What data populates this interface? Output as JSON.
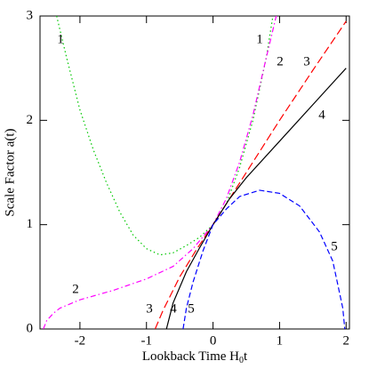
{
  "chart_data": {
    "type": "line",
    "xlabel": "Lookback Time  H",
    "xlabel_sub": "0",
    "xlabel_tail": "t",
    "ylabel": "Scale Factor  a(t)",
    "xlim": [
      -2.6,
      2.05
    ],
    "ylim": [
      0,
      3
    ],
    "xticks": [
      -2,
      -1,
      0,
      1,
      2
    ],
    "yticks": [
      0,
      1,
      2,
      3
    ],
    "series": [
      {
        "name": "1",
        "color": "#00c800",
        "dash": "1.5 3",
        "x": [
          -2.35,
          -2.2,
          -2,
          -1.8,
          -1.6,
          -1.4,
          -1.2,
          -1,
          -0.8,
          -0.6,
          -0.4,
          -0.2,
          0,
          0.2,
          0.4,
          0.6,
          0.8,
          0.9
        ],
        "values": [
          3,
          2.6,
          2.1,
          1.72,
          1.4,
          1.12,
          0.9,
          0.77,
          0.71,
          0.73,
          0.8,
          0.88,
          1,
          1.2,
          1.55,
          2,
          2.6,
          3
        ]
      },
      {
        "name": "2",
        "color": "#ff00ff",
        "dash": "6 3 1.5 3",
        "x": [
          -2.55,
          -2.5,
          -2.4,
          -2.3,
          -2,
          -1.5,
          -1,
          -0.6,
          -0.3,
          0,
          0.2,
          0.4,
          0.6,
          0.8,
          0.95
        ],
        "values": [
          0,
          0.08,
          0.15,
          0.2,
          0.28,
          0.37,
          0.48,
          0.6,
          0.77,
          1,
          1.25,
          1.6,
          2.05,
          2.6,
          3
        ]
      },
      {
        "name": "3",
        "color": "#ff0000",
        "dash": "9 4",
        "x": [
          -0.87,
          -0.75,
          -0.5,
          -0.25,
          0,
          0.5,
          1,
          1.5,
          2
        ],
        "values": [
          0,
          0.18,
          0.5,
          0.76,
          1,
          1.5,
          2,
          2.48,
          2.95
        ]
      },
      {
        "name": "4",
        "color": "#000000",
        "dash": "",
        "x": [
          -0.7,
          -0.6,
          -0.4,
          -0.2,
          0,
          0.25,
          0.5,
          1,
          1.5,
          2
        ],
        "values": [
          0,
          0.25,
          0.55,
          0.78,
          1,
          1.25,
          1.45,
          1.8,
          2.15,
          2.5
        ]
      },
      {
        "name": "5",
        "color": "#0000ff",
        "dash": "6 3",
        "x": [
          -0.45,
          -0.4,
          -0.3,
          -0.15,
          0,
          0.2,
          0.4,
          0.7,
          1,
          1.3,
          1.6,
          1.8,
          1.95,
          1.98
        ],
        "values": [
          0,
          0.2,
          0.45,
          0.75,
          1,
          1.15,
          1.27,
          1.33,
          1.3,
          1.18,
          0.93,
          0.65,
          0.2,
          0
        ]
      }
    ]
  }
}
